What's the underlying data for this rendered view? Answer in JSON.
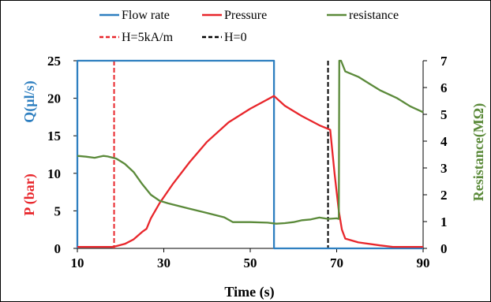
{
  "chart_data": {
    "type": "line",
    "title": "",
    "xlabel": "Time (s)",
    "ylabel_left_blue": "Q(µl/s)",
    "ylabel_left_red": "P (bar)",
    "ylabel_right": "Resistance(MΩ)",
    "xlim": [
      10,
      90
    ],
    "ylim_left": [
      0,
      25
    ],
    "ylim_right": [
      0,
      7
    ],
    "x_ticks": [
      "10",
      "30",
      "50",
      "70",
      "90"
    ],
    "y_left_ticks": [
      "0",
      "5",
      "10",
      "15",
      "20",
      "25"
    ],
    "y_right_ticks": [
      "0",
      "1",
      "2",
      "3",
      "4",
      "5",
      "6",
      "7"
    ],
    "grid": false,
    "legend_position": "top",
    "colors": {
      "flow": "#2e7fc0",
      "pressure": "#e8262b",
      "resistance": "#5b8a3a",
      "h_on": "#e8262b",
      "h_off": "#000000",
      "axis": "#000000"
    },
    "series": [
      {
        "name": "Flow rate",
        "axis": "left",
        "color": "#2e7fc0",
        "points": [
          [
            10,
            0
          ],
          [
            10,
            25
          ],
          [
            55.5,
            25
          ],
          [
            55.5,
            0
          ],
          [
            90,
            0
          ]
        ]
      },
      {
        "name": "Pressure",
        "axis": "left",
        "color": "#e8262b",
        "points": [
          [
            10,
            0.2
          ],
          [
            18,
            0.2
          ],
          [
            19,
            0.3
          ],
          [
            21,
            0.6
          ],
          [
            23,
            1.2
          ],
          [
            25,
            2.2
          ],
          [
            26,
            2.6
          ],
          [
            27,
            4.0
          ],
          [
            29,
            6.0
          ],
          [
            32,
            8.5
          ],
          [
            36,
            11.5
          ],
          [
            40,
            14.2
          ],
          [
            45,
            16.8
          ],
          [
            50,
            18.6
          ],
          [
            55.5,
            20.3
          ],
          [
            58,
            19.0
          ],
          [
            62,
            17.6
          ],
          [
            66,
            16.4
          ],
          [
            68.5,
            15.8
          ],
          [
            69.5,
            10.0
          ],
          [
            70.5,
            5.0
          ],
          [
            71.2,
            2.5
          ],
          [
            72,
            1.3
          ],
          [
            75,
            0.8
          ],
          [
            80,
            0.4
          ],
          [
            83,
            0.2
          ],
          [
            90,
            0.2
          ]
        ]
      },
      {
        "name": "resistance",
        "axis": "right",
        "color": "#5b8a3a",
        "points": [
          [
            10,
            3.45
          ],
          [
            12,
            3.42
          ],
          [
            14,
            3.38
          ],
          [
            16,
            3.45
          ],
          [
            17,
            3.43
          ],
          [
            19,
            3.35
          ],
          [
            21,
            3.15
          ],
          [
            23,
            2.85
          ],
          [
            25,
            2.4
          ],
          [
            27,
            2.0
          ],
          [
            29,
            1.78
          ],
          [
            31,
            1.68
          ],
          [
            33,
            1.6
          ],
          [
            36,
            1.48
          ],
          [
            40,
            1.32
          ],
          [
            44,
            1.16
          ],
          [
            46,
            0.98
          ],
          [
            50,
            0.98
          ],
          [
            54,
            0.96
          ],
          [
            56,
            0.92
          ],
          [
            58,
            0.94
          ],
          [
            60,
            0.98
          ],
          [
            62,
            1.05
          ],
          [
            64,
            1.08
          ],
          [
            66,
            1.15
          ],
          [
            68,
            1.1
          ],
          [
            70,
            1.12
          ],
          [
            70.5,
            1.1
          ],
          [
            70.6,
            7.0
          ],
          [
            71,
            7.0
          ],
          [
            72,
            6.6
          ],
          [
            75,
            6.4
          ],
          [
            78,
            6.1
          ],
          [
            80,
            5.9
          ],
          [
            84,
            5.6
          ],
          [
            87,
            5.3
          ],
          [
            90,
            5.08
          ]
        ]
      }
    ],
    "markers": [
      {
        "name": "H=5kA/m",
        "x": 18.5,
        "color": "#e8262b",
        "style": "dashed"
      },
      {
        "name": "H=0",
        "x": 68,
        "color": "#000000",
        "style": "dashed"
      }
    ]
  }
}
